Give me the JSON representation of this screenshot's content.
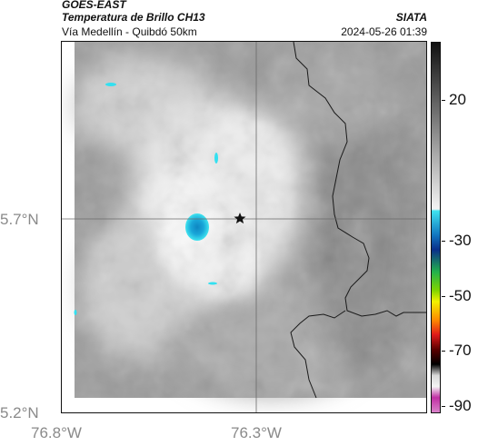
{
  "header": {
    "satellite": "GOES-EAST",
    "product": "Temperatura de Brillo CH13",
    "region": "Vía Medellín - Quibdó 50km",
    "org": "SIATA",
    "datetime": "2024-05-26 01:39"
  },
  "axes": {
    "lat_labels": [
      "5.7°N",
      "5.2°N"
    ],
    "lon_labels": [
      "76.8°W",
      "76.3°W"
    ]
  },
  "colorbar": {
    "labels": [
      "20",
      "-30",
      "-50",
      "-70",
      "-90"
    ],
    "unit_ticks": [
      20,
      -30,
      -50,
      -70,
      -90
    ]
  },
  "map": {
    "marker": "star-marker",
    "colors": {
      "cloud_bright": "#f6f6f6",
      "cloud_mid": "#b8b8b8",
      "ground": "#8f8f8f",
      "cold_core": "#1aa7d9",
      "cold_edge": "#33e0f0"
    }
  }
}
